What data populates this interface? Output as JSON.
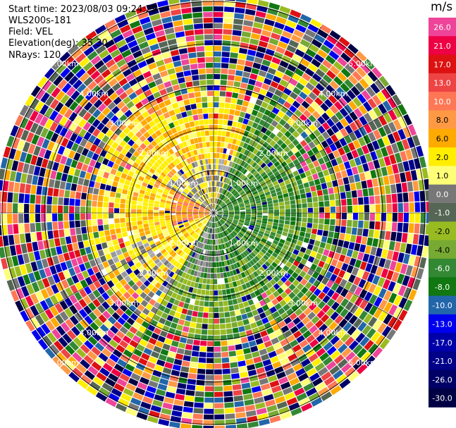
{
  "header": {
    "start_time": "Start time: 2023/08/03 09:24:29",
    "instrument": "WLS200s-181",
    "field": "Field: VEL",
    "elevation": "Elevation(deg): 35.30",
    "nrays": "NRays: 120"
  },
  "colorbar": {
    "unit": "m/s",
    "ticks": [
      "26.0",
      "21.0",
      "17.0",
      "13.0",
      "10.0",
      "8.0",
      "6.0",
      "2.0",
      "1.0",
      "0.0",
      "-1.0",
      "-2.0",
      "-4.0",
      "-6.0",
      "-8.0",
      "-10.0",
      "-13.0",
      "-17.0",
      "-21.0",
      "-26.0",
      "-30.0"
    ],
    "colors": [
      "#ee4499",
      "#ee0044",
      "#dd1111",
      "#ee4444",
      "#ff7755",
      "#ff9944",
      "#ffaa00",
      "#ffee00",
      "#ffff77",
      "#777777",
      "#556655",
      "#99bb22",
      "#77aa33",
      "#338833",
      "#117711",
      "#2266aa",
      "#0000ee",
      "#0000aa",
      "#000088",
      "#000066",
      "#000044"
    ]
  },
  "chart_data": {
    "type": "heatmap",
    "projection": "PPI (polar)",
    "field": "VEL",
    "units": "m/s",
    "nrays": 120,
    "range_rings_km": [
      1.0,
      2.0,
      3.0,
      4.0,
      5.0
    ],
    "ring_labels": [
      "1.00km",
      "2.00km",
      "3.00km",
      "4.00km",
      "5.00km"
    ],
    "vlim": [
      -30.0,
      26.0
    ],
    "pattern": "near-field (<1.5 km): gray/green approaching flow to the east-south, yellow/orange receding flow to the west-north; beyond ~2.5 km noisy multicolor speckle"
  }
}
